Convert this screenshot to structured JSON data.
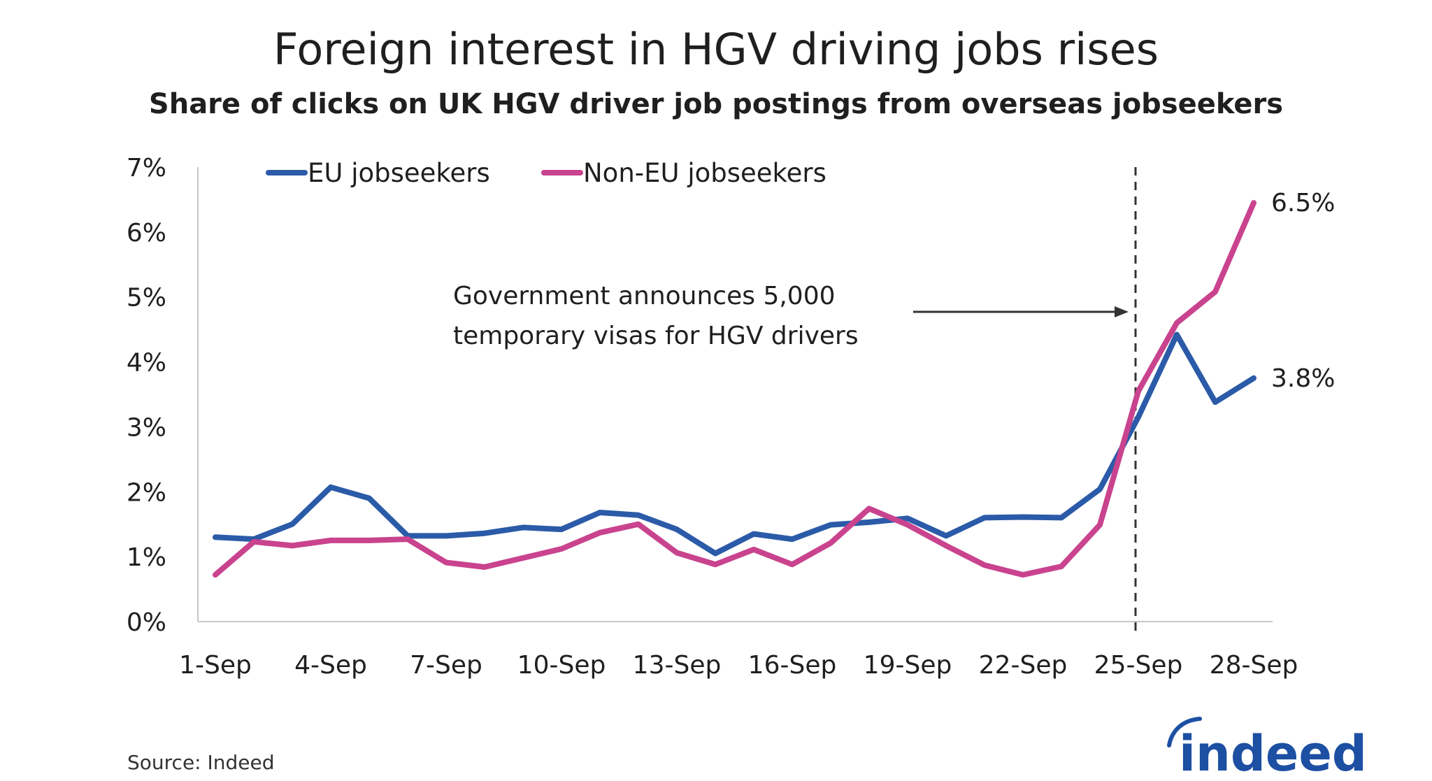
{
  "chart_data": {
    "type": "line",
    "title": "Foreign interest in HGV driving jobs rises",
    "subtitle": "Share of clicks on UK HGV driver job postings from overseas jobseekers",
    "xlabel": "",
    "ylabel": "",
    "x": [
      "1-Sep",
      "2-Sep",
      "3-Sep",
      "4-Sep",
      "5-Sep",
      "6-Sep",
      "7-Sep",
      "8-Sep",
      "9-Sep",
      "10-Sep",
      "11-Sep",
      "12-Sep",
      "13-Sep",
      "14-Sep",
      "15-Sep",
      "16-Sep",
      "17-Sep",
      "18-Sep",
      "19-Sep",
      "20-Sep",
      "21-Sep",
      "22-Sep",
      "23-Sep",
      "24-Sep",
      "25-Sep",
      "26-Sep",
      "27-Sep",
      "28-Sep"
    ],
    "x_tick_labels": [
      "1-Sep",
      "4-Sep",
      "7-Sep",
      "10-Sep",
      "13-Sep",
      "16-Sep",
      "19-Sep",
      "22-Sep",
      "25-Sep",
      "28-Sep"
    ],
    "y_tick_labels": [
      "0%",
      "1%",
      "2%",
      "3%",
      "4%",
      "5%",
      "6%",
      "7%"
    ],
    "ylim": [
      0,
      7
    ],
    "grid": false,
    "legend_position": "top-left",
    "series": [
      {
        "name": "EU jobseekers",
        "color": "#2b5ba8",
        "values": [
          1.3,
          1.27,
          1.5,
          2.07,
          1.9,
          1.32,
          1.32,
          1.36,
          1.45,
          1.42,
          1.68,
          1.64,
          1.42,
          1.05,
          1.35,
          1.27,
          1.49,
          1.53,
          1.59,
          1.32,
          1.6,
          1.61,
          1.6,
          2.04,
          3.15,
          4.42,
          3.38,
          3.75
        ]
      },
      {
        "name": "Non-EU jobseekers",
        "color": "#c9438e",
        "values": [
          0.72,
          1.23,
          1.17,
          1.25,
          1.25,
          1.27,
          0.91,
          0.84,
          0.98,
          1.12,
          1.37,
          1.5,
          1.06,
          0.88,
          1.11,
          0.88,
          1.21,
          1.74,
          1.49,
          1.17,
          0.87,
          0.72,
          0.85,
          1.49,
          3.55,
          4.6,
          5.08,
          6.45
        ]
      }
    ],
    "end_labels": {
      "non_eu": "6.5%",
      "eu": "3.8%"
    },
    "annotation": {
      "line1": "Government announces 5,000",
      "line2": "temporary visas for HGV drivers",
      "x": "25-Sep"
    },
    "source": "Source: Indeed"
  },
  "logo": {
    "text": "indeed",
    "color": "#1d4fa3"
  },
  "colors": {
    "axis": "#c8c8c8",
    "text": "#1f1f1f",
    "annotation_line": "#333333"
  }
}
